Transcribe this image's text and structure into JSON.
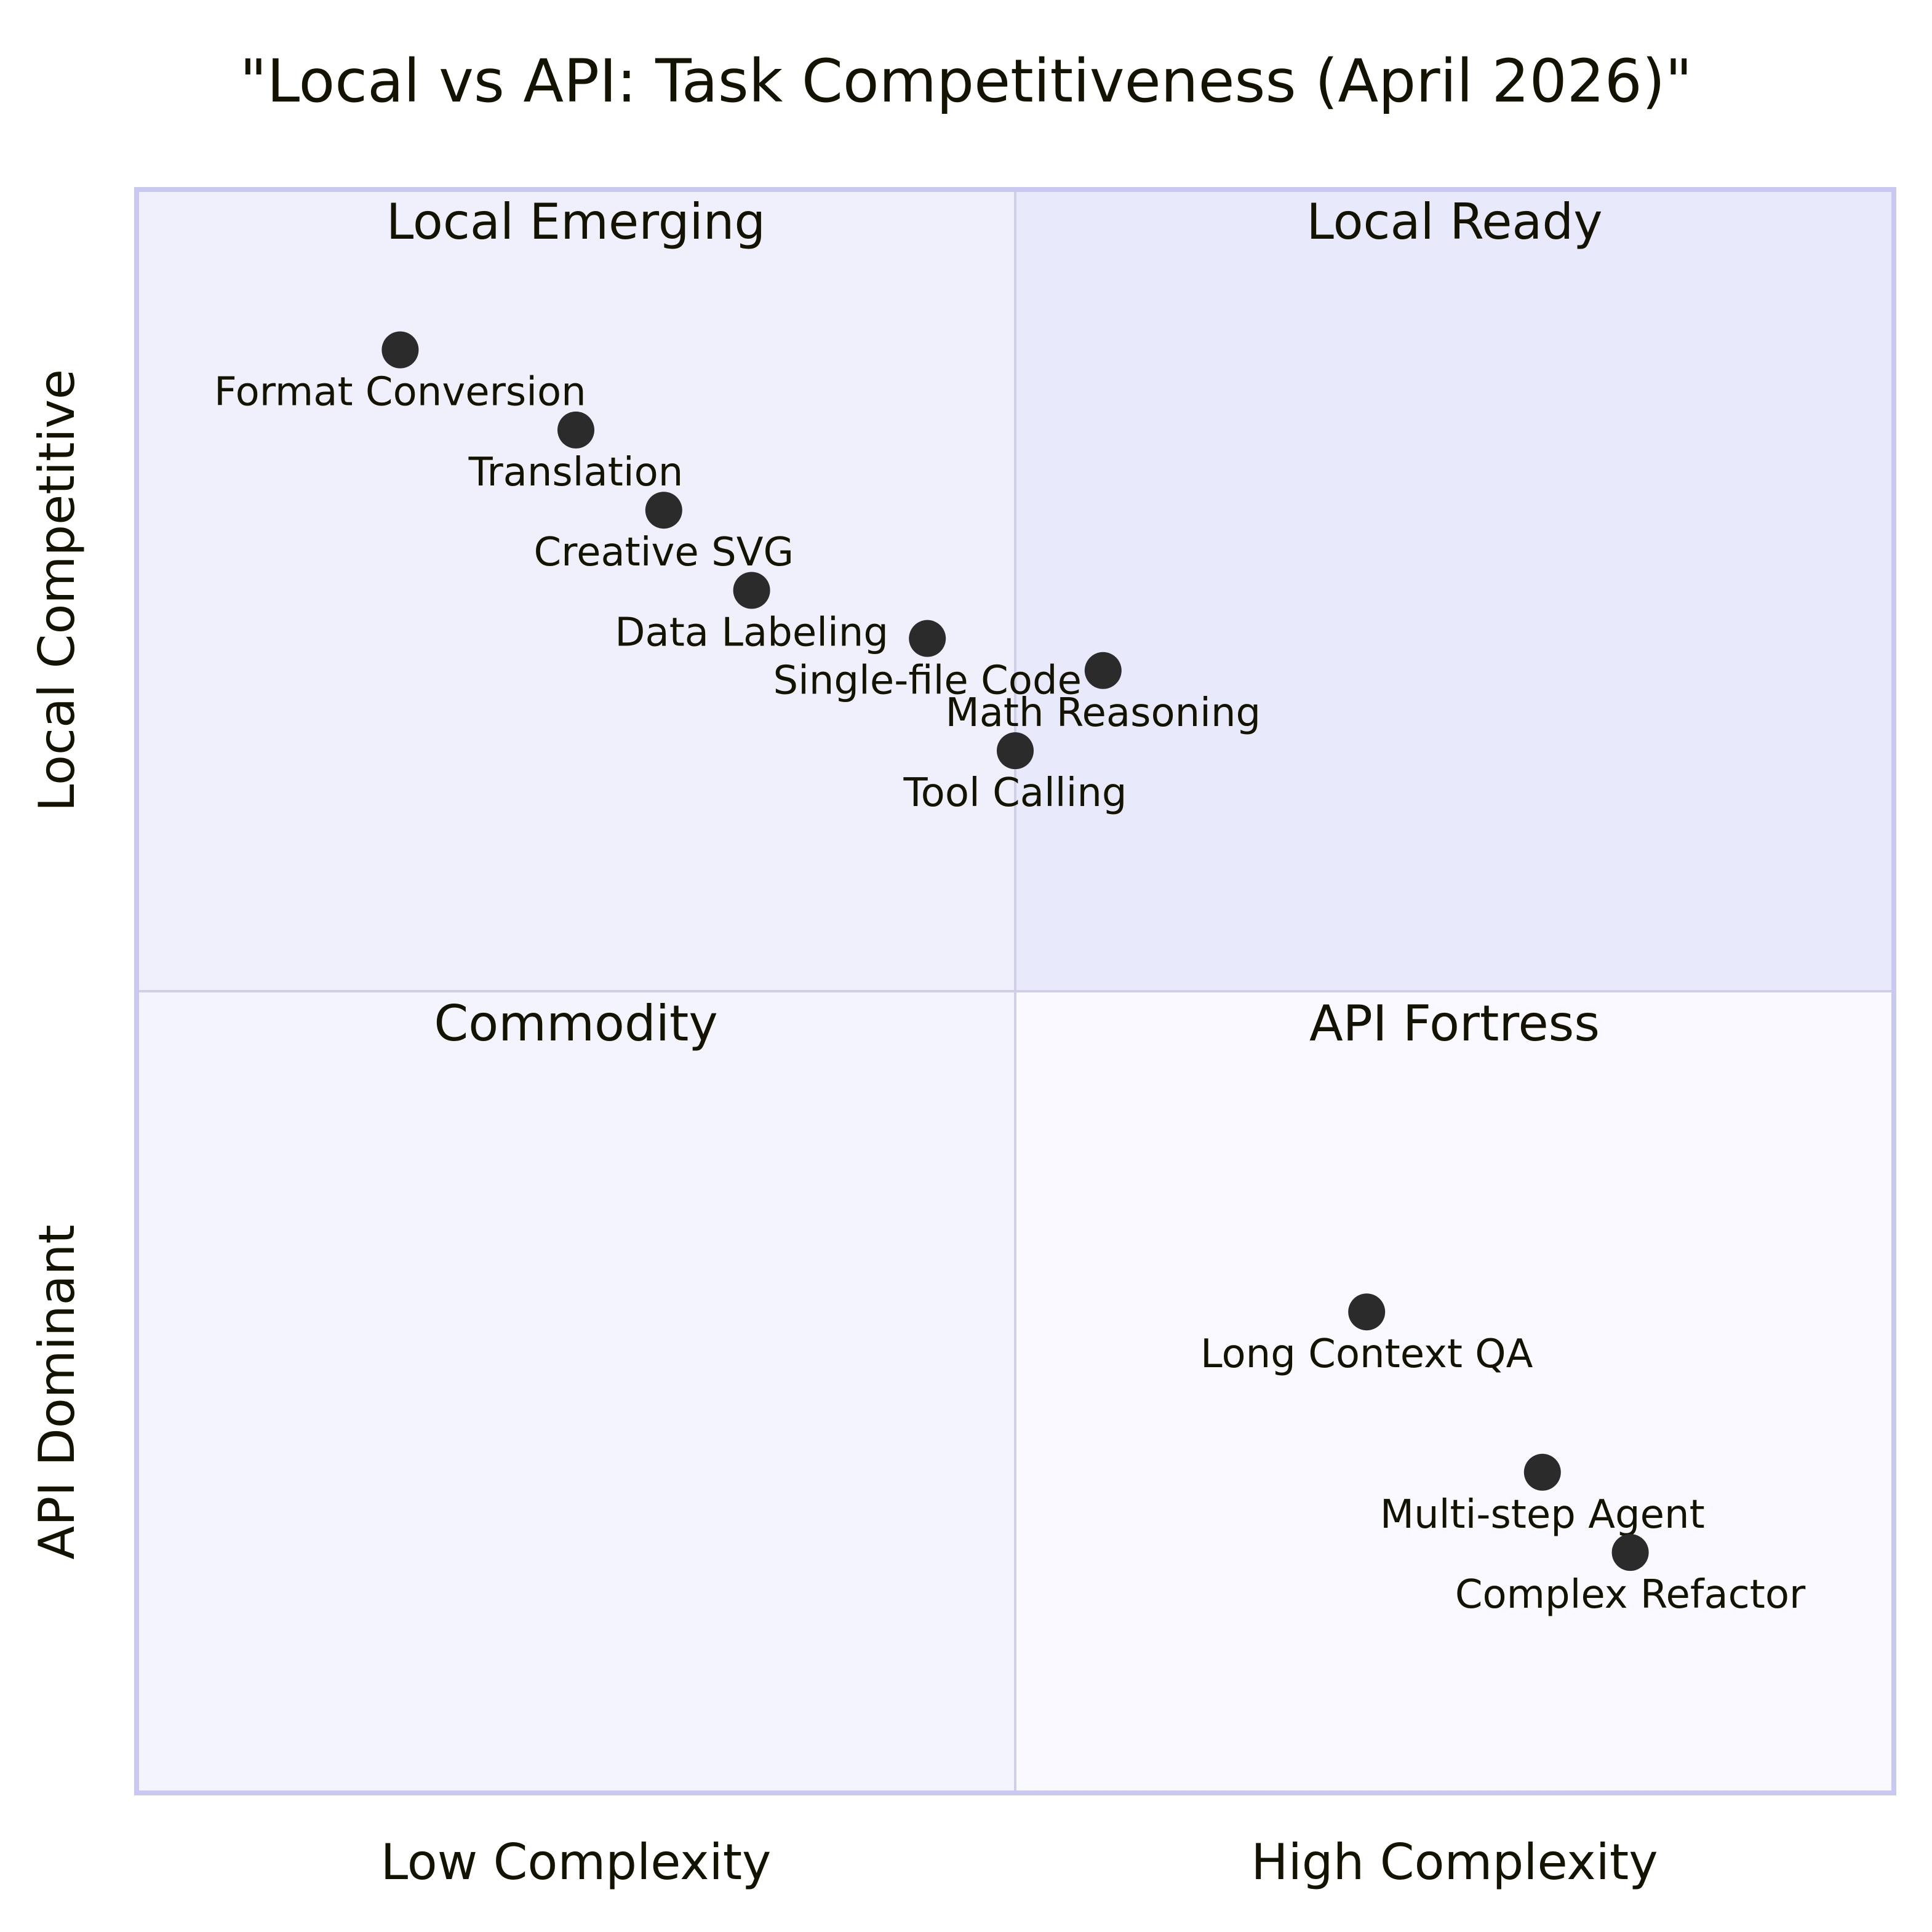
{
  "chart_data": {
    "type": "scatter",
    "title": "\"Local vs API: Task Competitiveness (April 2026)\"",
    "x_axis": {
      "low_label": "Low Complexity",
      "high_label": "High Complexity",
      "range": [
        0,
        1
      ]
    },
    "y_axis": {
      "low_label": "API Dominant",
      "high_label": "Local Competitive",
      "range": [
        0,
        1
      ]
    },
    "quadrants": {
      "top_left": "Local Emerging",
      "top_right": "Local Ready",
      "bottom_left": "Commodity",
      "bottom_right": "API Fortress"
    },
    "points": [
      {
        "label": "Format Conversion",
        "x": 0.15,
        "y": 0.9
      },
      {
        "label": "Translation",
        "x": 0.25,
        "y": 0.85
      },
      {
        "label": "Creative SVG",
        "x": 0.3,
        "y": 0.8
      },
      {
        "label": "Data Labeling",
        "x": 0.35,
        "y": 0.75
      },
      {
        "label": "Single-file Code",
        "x": 0.45,
        "y": 0.72
      },
      {
        "label": "Math Reasoning",
        "x": 0.55,
        "y": 0.7
      },
      {
        "label": "Tool Calling",
        "x": 0.5,
        "y": 0.65
      },
      {
        "label": "Long Context QA",
        "x": 0.7,
        "y": 0.3
      },
      {
        "label": "Multi-step Agent",
        "x": 0.8,
        "y": 0.2
      },
      {
        "label": "Complex Refactor",
        "x": 0.85,
        "y": 0.15
      }
    ],
    "grid": false,
    "colors": {
      "quadrant_top_right": "#e9e9fc",
      "quadrant_top_left": "#f0f0fd",
      "quadrant_bottom_left": "#f4f4fe",
      "quadrant_bottom_right": "#f9f9ff",
      "border": "#c8c8f0",
      "divider": "#cfcfe8",
      "point": "#2b2b2b",
      "text": "#131300"
    }
  }
}
